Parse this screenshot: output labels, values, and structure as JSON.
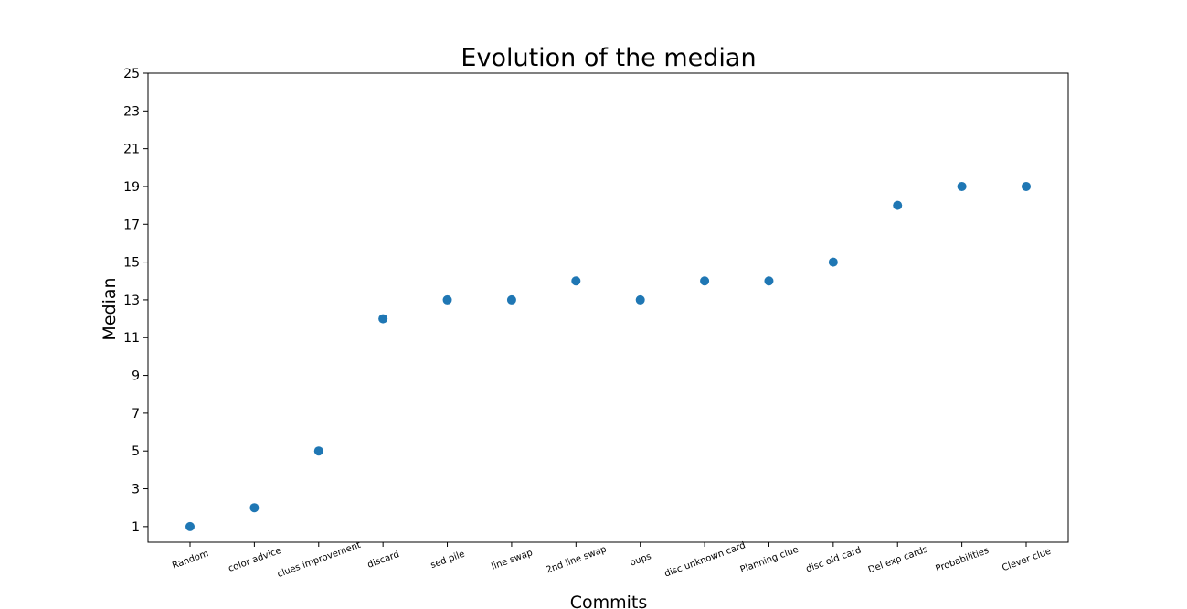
{
  "chart_data": {
    "type": "scatter",
    "title": "Evolution of the median",
    "xlabel": "Commits",
    "ylabel": "Median",
    "categories": [
      "Random",
      "color advice",
      "clues improvement",
      "discard",
      "sed pile",
      "line swap",
      "2nd line swap",
      "oups",
      "disc unknown card",
      "Planning clue",
      "disc old card",
      "Del exp cards",
      "Probabilities",
      "Clever clue"
    ],
    "values": [
      1,
      2,
      5,
      12,
      13,
      13,
      14,
      13,
      14,
      14,
      15,
      18,
      19,
      19
    ],
    "ylim": [
      0.17,
      25
    ],
    "yticks": [
      1,
      3,
      5,
      7,
      9,
      11,
      13,
      15,
      17,
      19,
      21,
      23,
      25
    ],
    "grid": false,
    "marker_color": "#1f77b4"
  }
}
